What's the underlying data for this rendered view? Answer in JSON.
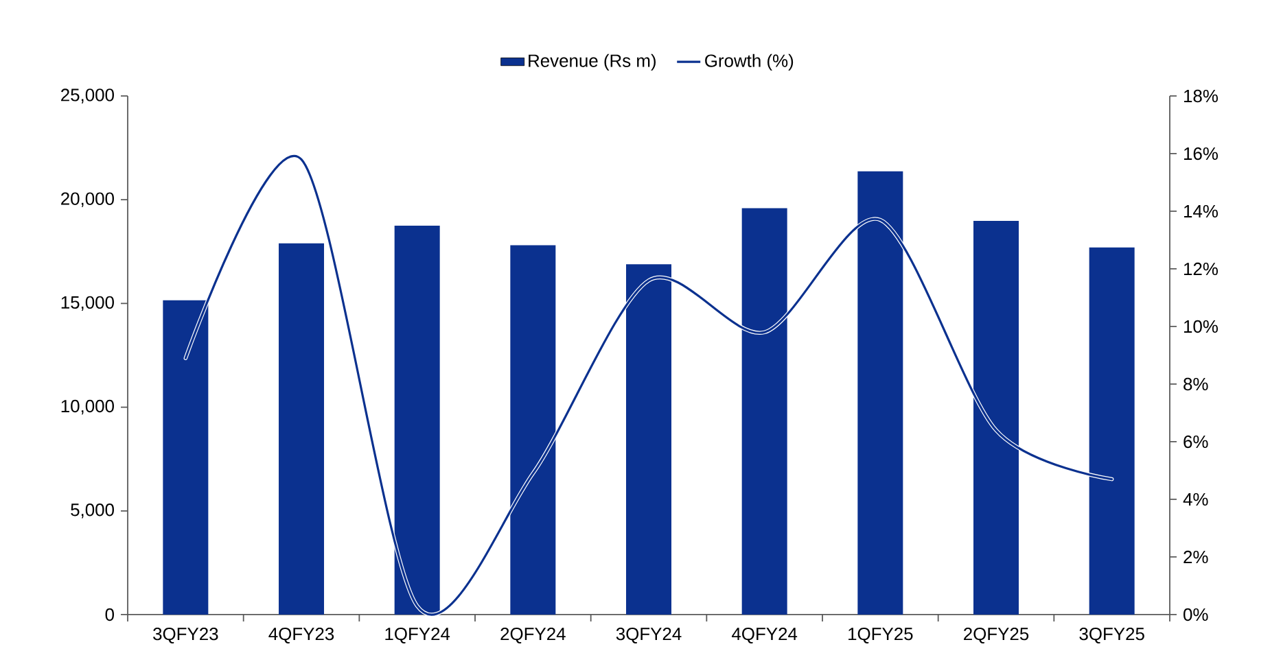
{
  "chart_data": {
    "type": "bar",
    "categories": [
      "3QFY23",
      "4QFY23",
      "1QFY24",
      "2QFY24",
      "3QFY24",
      "4QFY24",
      "1QFY25",
      "2QFY25",
      "3QFY25"
    ],
    "series": [
      {
        "name": "Revenue (Rs m)",
        "color": "#0b318f",
        "values": [
          15150,
          17900,
          18750,
          17810,
          16890,
          19590,
          21370,
          18980,
          17700
        ]
      },
      {
        "name": "Growth (%)",
        "type": "line",
        "axis": "y2",
        "color": "#0b318f",
        "values": [
          8.9,
          15.8,
          0.3,
          4.9,
          11.6,
          9.8,
          13.7,
          6.4,
          4.7
        ]
      }
    ],
    "ylim": [
      0,
      25000
    ],
    "yticks": [
      0,
      {
        "value": 5000,
        "label": "5,000"
      },
      {
        "value": 10000,
        "label": "10,000"
      },
      {
        "value": 15000,
        "label": "15,000"
      },
      {
        "value": 20000,
        "label": "20,000"
      },
      {
        "value": 25000,
        "label": "25,000"
      }
    ],
    "y2lim": [
      0,
      18
    ],
    "y2ticks": [
      {
        "value": 0,
        "label": "0%"
      },
      {
        "value": 2,
        "label": "2%"
      },
      {
        "value": 4,
        "label": "4%"
      },
      {
        "value": 6,
        "label": "6%"
      },
      {
        "value": 8,
        "label": "8%"
      },
      {
        "value": 10,
        "label": "10%"
      },
      {
        "value": 12,
        "label": "12%"
      },
      {
        "value": 14,
        "label": "14%"
      },
      {
        "value": 16,
        "label": "16%"
      },
      {
        "value": 18,
        "label": "18%"
      }
    ],
    "legend": "top"
  }
}
